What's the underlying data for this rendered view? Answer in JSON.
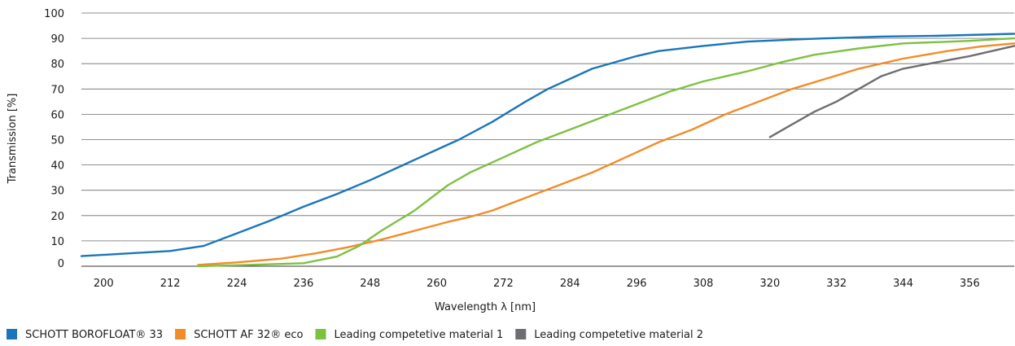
{
  "chart_data": {
    "type": "line",
    "title": "",
    "xlabel": "Wavelength λ [nm]",
    "ylabel": "Transmission [%]",
    "xlim": [
      196,
      364
    ],
    "ylim": [
      0,
      100
    ],
    "x_ticks": [
      "200",
      "212",
      "224",
      "236",
      "248",
      "260",
      "272",
      "284",
      "296",
      "308",
      "320",
      "332",
      "344",
      "356"
    ],
    "y_ticks": [
      "0",
      "10",
      "20",
      "30",
      "40",
      "50",
      "60",
      "70",
      "80",
      "90",
      "100"
    ],
    "grid": "horizontal",
    "legend_position": "bottom",
    "series": [
      {
        "name": "SCHOTT BOROFLOAT® 33",
        "color": "#1a75bb",
        "points": [
          [
            196,
            4
          ],
          [
            204,
            5
          ],
          [
            212,
            6
          ],
          [
            218,
            8
          ],
          [
            224,
            13
          ],
          [
            230,
            18
          ],
          [
            236,
            23.5
          ],
          [
            242,
            28.5
          ],
          [
            248,
            34
          ],
          [
            254,
            40
          ],
          [
            260,
            46
          ],
          [
            264,
            50
          ],
          [
            270,
            57
          ],
          [
            276,
            65
          ],
          [
            280,
            70
          ],
          [
            284,
            74
          ],
          [
            288,
            78
          ],
          [
            292,
            80.5
          ],
          [
            296,
            83
          ],
          [
            300,
            85
          ],
          [
            308,
            87
          ],
          [
            316,
            88.7
          ],
          [
            324,
            89.5
          ],
          [
            330,
            90
          ],
          [
            340,
            90.7
          ],
          [
            350,
            91
          ],
          [
            364,
            91.8
          ]
        ]
      },
      {
        "name": "SCHOTT AF 32® eco",
        "color": "#f28c28",
        "points": [
          [
            217,
            0.5
          ],
          [
            224,
            1.5
          ],
          [
            232,
            3
          ],
          [
            238,
            5
          ],
          [
            244,
            7.5
          ],
          [
            250,
            10.5
          ],
          [
            256,
            14
          ],
          [
            262,
            17.5
          ],
          [
            266,
            19.5
          ],
          [
            270,
            22
          ],
          [
            276,
            27
          ],
          [
            282,
            32
          ],
          [
            288,
            37
          ],
          [
            294,
            43
          ],
          [
            300,
            49
          ],
          [
            306,
            54
          ],
          [
            312,
            60
          ],
          [
            318,
            65
          ],
          [
            324,
            70
          ],
          [
            330,
            74
          ],
          [
            336,
            78
          ],
          [
            344,
            82
          ],
          [
            352,
            85
          ],
          [
            358,
            86.8
          ],
          [
            364,
            88
          ]
        ]
      },
      {
        "name": "Leading competetive material 1",
        "color": "#7dc142",
        "points": [
          [
            217,
            0
          ],
          [
            226,
            0.5
          ],
          [
            236,
            1.2
          ],
          [
            242,
            3.8
          ],
          [
            246,
            8
          ],
          [
            250,
            14
          ],
          [
            256,
            22
          ],
          [
            262,
            32
          ],
          [
            266,
            37
          ],
          [
            272,
            43
          ],
          [
            278,
            49
          ],
          [
            284,
            54
          ],
          [
            290,
            59
          ],
          [
            296,
            64
          ],
          [
            302,
            69
          ],
          [
            308,
            73
          ],
          [
            316,
            77
          ],
          [
            322,
            80.5
          ],
          [
            328,
            83.5
          ],
          [
            336,
            86
          ],
          [
            344,
            88
          ],
          [
            356,
            89
          ],
          [
            364,
            90
          ]
        ]
      },
      {
        "name": "Leading competetive material 2",
        "color": "#6d6e71",
        "points": [
          [
            320,
            51
          ],
          [
            324,
            56
          ],
          [
            328,
            61
          ],
          [
            332,
            65
          ],
          [
            336,
            70
          ],
          [
            340,
            75
          ],
          [
            344,
            78
          ],
          [
            350,
            80.5
          ],
          [
            356,
            83
          ],
          [
            364,
            87
          ]
        ]
      }
    ]
  }
}
